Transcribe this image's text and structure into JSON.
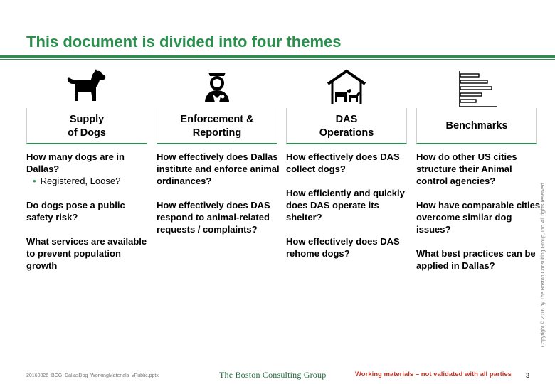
{
  "title": "This document is divided into four themes",
  "columns": [
    {
      "icon": "dog-icon",
      "header": "Supply\nof Dogs",
      "questions": [
        "How many dogs are in Dallas?",
        "Do dogs pose a public safety risk?",
        "What services are available to prevent population growth"
      ],
      "bullet": "Registered, Loose?"
    },
    {
      "icon": "officer-icon",
      "header": "Enforcement &\nReporting",
      "questions": [
        "How effectively does Dallas institute and enforce animal ordinances?",
        "How effectively does DAS respond to animal-related requests / complaints?"
      ]
    },
    {
      "icon": "shelter-icon",
      "header": "DAS\nOperations",
      "questions": [
        "How effectively does DAS collect dogs?",
        "How efficiently and quickly does DAS operate its shelter?",
        "How effectively does DAS rehome dogs?"
      ]
    },
    {
      "icon": "bar-chart-icon",
      "header": "Benchmarks",
      "questions": [
        "How do other US cities structure their Animal control agencies?",
        "How have comparable cities overcome similar dog issues?",
        "What best practices can be applied in Dallas?"
      ]
    }
  ],
  "footer": {
    "filename": "20160826_BCG_DallasDog_WorkingMaterials_vPublic.pptx",
    "logo": "The Boston Consulting Group",
    "note": "Working materials – not validated with all parties",
    "page": "3"
  },
  "copyright": "Copyright © 2016 by The Boston Consulting Group, Inc. All rights reserved.",
  "colors": {
    "accent": "#2a8f4c",
    "note": "#c0392b"
  }
}
